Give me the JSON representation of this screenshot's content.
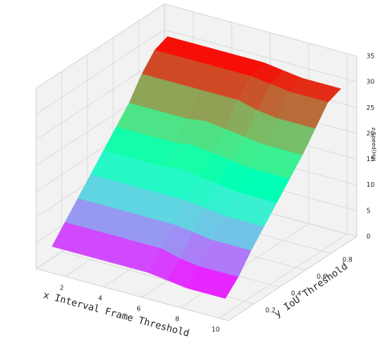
{
  "chart_data": {
    "type": "surface",
    "xlabel": "x Interval Frame Threshold",
    "ylabel": "y IoU Threshold",
    "zlabel": "z Speed(Hz)",
    "x": [
      1,
      2,
      3,
      4,
      5,
      6,
      7,
      8,
      9,
      10
    ],
    "y": [
      0.05,
      0.15,
      0.25,
      0.35,
      0.45,
      0.55,
      0.65,
      0.75,
      0.85,
      0.95
    ],
    "z": [
      [
        4,
        4,
        4,
        4,
        4,
        4,
        3.5,
        3,
        3,
        3
      ],
      [
        7,
        7,
        7,
        7,
        7,
        7,
        6,
        5.5,
        5.5,
        5.5
      ],
      [
        10,
        10,
        10,
        10,
        10,
        10,
        9.5,
        9,
        9,
        9
      ],
      [
        13,
        13,
        13,
        13,
        13,
        13,
        12.5,
        12,
        12,
        12
      ],
      [
        16,
        16,
        16,
        16,
        16.5,
        16,
        15.5,
        15,
        15,
        15
      ],
      [
        19,
        19,
        19,
        19,
        19.5,
        19,
        18.5,
        18,
        18,
        18
      ],
      [
        22,
        22,
        22,
        22,
        22.5,
        22,
        21.5,
        21,
        21,
        21
      ],
      [
        26,
        26,
        26,
        26,
        26,
        26,
        25,
        24.5,
        24.5,
        24.5
      ],
      [
        29,
        29,
        29,
        29,
        29,
        29,
        28.5,
        28,
        28,
        28
      ],
      [
        30,
        30,
        30,
        30,
        30,
        30,
        29.5,
        29,
        29,
        29
      ]
    ],
    "colormap": "rainbow",
    "xlim": [
      0.5,
      10.5
    ],
    "xticks": [
      2,
      4,
      6,
      8,
      10
    ],
    "ylim": [
      0,
      1
    ],
    "yticks": [
      0.2,
      0.4,
      0.6,
      0.8
    ],
    "zlim": [
      0,
      35
    ],
    "zticks": [
      0,
      5,
      10,
      15,
      20,
      25,
      30,
      35
    ],
    "grid": true
  }
}
